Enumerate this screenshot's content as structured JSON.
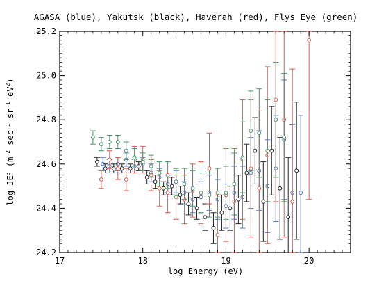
{
  "chart_data": {
    "type": "scatter",
    "title": "AGASA (blue), Yakutsk (black), Haverah (red), Flys Eye (green)",
    "xlabel": "log Energy (eV)",
    "ylabel_parts": {
      "prefix": "log JE",
      "exp3": "3",
      "mid1": " (m",
      "expm2": "-2",
      "mid2": " sec",
      "expm1a": "-1",
      "mid3": " sr",
      "expm1b": "-1",
      "mid4": " eV",
      "exp2": "2",
      "suffix": ")"
    },
    "xlim": [
      17.0,
      20.5
    ],
    "ylim": [
      24.2,
      25.2
    ],
    "x_ticks": [
      {
        "v": 17,
        "label": "17"
      },
      {
        "v": 18,
        "label": "18"
      },
      {
        "v": 19,
        "label": "19"
      },
      {
        "v": 20,
        "label": "20"
      }
    ],
    "y_ticks": [
      {
        "v": 24.2,
        "label": "24.2"
      },
      {
        "v": 24.4,
        "label": "24.4"
      },
      {
        "v": 24.6,
        "label": "24.6"
      },
      {
        "v": 24.8,
        "label": "24.8"
      },
      {
        "v": 25.0,
        "label": "25.0"
      },
      {
        "v": 25.2,
        "label": "25.2"
      }
    ],
    "grid": false,
    "series": [
      {
        "color": "#5577cc",
        "points": [
          [
            17.52,
            24.6,
            24.03
          ],
          [
            17.6,
            24.59,
            24.03
          ],
          [
            17.7,
            24.6,
            24.03
          ],
          [
            17.8,
            24.62,
            24.03
          ],
          [
            17.9,
            24.59,
            24.03
          ],
          [
            18.0,
            24.6,
            24.03
          ],
          [
            18.1,
            24.56,
            24.04
          ],
          [
            18.2,
            24.54,
            24.04
          ],
          [
            18.3,
            24.51,
            24.04
          ],
          [
            18.4,
            24.52,
            24.05
          ],
          [
            18.5,
            24.47,
            24.05
          ],
          [
            18.6,
            24.44,
            24.06
          ],
          [
            18.7,
            24.45,
            24.07
          ],
          [
            18.8,
            24.47,
            24.08
          ],
          [
            18.9,
            24.44,
            24.09
          ],
          [
            19.0,
            24.41,
            24.1
          ],
          [
            19.1,
            24.47,
            24.12
          ],
          [
            19.2,
            24.45,
            24.14
          ],
          [
            19.3,
            24.56,
            24.16
          ],
          [
            19.4,
            24.57,
            24.18
          ],
          [
            19.5,
            24.5,
            24.21
          ],
          [
            19.6,
            24.58,
            24.24
          ],
          [
            19.7,
            24.71,
            24.27
          ],
          [
            19.8,
            24.47,
            24.31
          ],
          [
            19.9,
            24.47,
            24.35
          ]
        ]
      },
      {
        "color": "#222222",
        "points": [
          [
            17.45,
            24.61,
            24.02
          ],
          [
            17.55,
            24.58,
            24.02
          ],
          [
            17.65,
            24.58,
            24.02
          ],
          [
            17.75,
            24.58,
            24.02
          ],
          [
            17.85,
            24.58,
            24.02
          ],
          [
            17.95,
            24.59,
            24.02
          ],
          [
            18.05,
            24.54,
            24.03
          ],
          [
            18.15,
            24.52,
            24.03
          ],
          [
            18.25,
            24.49,
            24.03
          ],
          [
            18.35,
            24.5,
            24.04
          ],
          [
            18.45,
            24.46,
            24.04
          ],
          [
            18.55,
            24.42,
            24.05
          ],
          [
            18.65,
            24.4,
            24.05
          ],
          [
            18.75,
            24.36,
            24.06
          ],
          [
            18.85,
            24.31,
            24.07
          ],
          [
            18.95,
            24.38,
            24.08
          ],
          [
            19.05,
            24.4,
            24.1
          ],
          [
            19.15,
            24.44,
            24.11
          ],
          [
            19.25,
            24.56,
            24.13
          ],
          [
            19.35,
            24.66,
            24.15
          ],
          [
            19.45,
            24.43,
            24.18
          ],
          [
            19.55,
            24.66,
            24.2
          ],
          [
            19.65,
            24.49,
            24.23
          ],
          [
            19.75,
            24.36,
            24.27
          ],
          [
            19.85,
            24.57,
            24.31
          ]
        ]
      },
      {
        "color": "#ee5544",
        "points": [
          [
            17.5,
            24.53,
            24.04
          ],
          [
            17.6,
            24.62,
            24.04
          ],
          [
            17.7,
            24.58,
            24.05
          ],
          [
            17.8,
            24.53,
            24.05
          ],
          [
            17.9,
            24.62,
            24.06
          ],
          [
            18.0,
            24.62,
            24.06
          ],
          [
            18.1,
            24.55,
            24.07
          ],
          [
            18.2,
            24.49,
            24.08
          ],
          [
            18.3,
            24.47,
            24.09
          ],
          [
            18.4,
            24.45,
            24.1
          ],
          [
            18.5,
            24.44,
            24.11
          ],
          [
            18.6,
            24.48,
            24.12
          ],
          [
            18.7,
            24.47,
            24.14
          ],
          [
            18.8,
            24.58,
            24.16
          ],
          [
            18.9,
            24.28,
            24.18
          ],
          [
            19.0,
            24.46,
            24.21
          ],
          [
            19.1,
            24.43,
            24.24
          ],
          [
            19.2,
            24.62,
            24.27
          ],
          [
            19.3,
            24.58,
            24.31
          ],
          [
            19.4,
            24.49,
            24.35
          ],
          [
            19.5,
            24.64,
            24.4
          ],
          [
            19.6,
            24.89,
            24.46
          ],
          [
            19.7,
            24.8,
            24.53
          ],
          [
            19.8,
            24.43,
            24.6
          ],
          [
            20.0,
            25.16,
            24.72
          ]
        ]
      },
      {
        "color": "#449966",
        "points": [
          [
            17.4,
            24.72,
            24.03
          ],
          [
            17.5,
            24.69,
            24.03
          ],
          [
            17.6,
            24.7,
            24.03
          ],
          [
            17.7,
            24.7,
            24.03
          ],
          [
            17.8,
            24.66,
            24.04
          ],
          [
            17.9,
            24.63,
            24.04
          ],
          [
            18.0,
            24.61,
            24.04
          ],
          [
            18.1,
            24.59,
            24.05
          ],
          [
            18.2,
            24.56,
            24.05
          ],
          [
            18.3,
            24.55,
            24.06
          ],
          [
            18.4,
            24.52,
            24.06
          ],
          [
            18.5,
            24.51,
            24.07
          ],
          [
            18.6,
            24.49,
            24.08
          ],
          [
            18.7,
            24.47,
            24.09
          ],
          [
            18.8,
            24.46,
            24.1
          ],
          [
            18.9,
            24.47,
            24.11
          ],
          [
            19.0,
            24.47,
            24.12
          ],
          [
            19.1,
            24.51,
            24.14
          ],
          [
            19.2,
            24.63,
            24.16
          ],
          [
            19.3,
            24.75,
            24.18
          ],
          [
            19.4,
            24.74,
            24.2
          ],
          [
            19.5,
            24.66,
            24.23
          ],
          [
            19.6,
            24.8,
            24.26
          ],
          [
            19.7,
            24.72,
            24.29
          ]
        ]
      }
    ]
  }
}
